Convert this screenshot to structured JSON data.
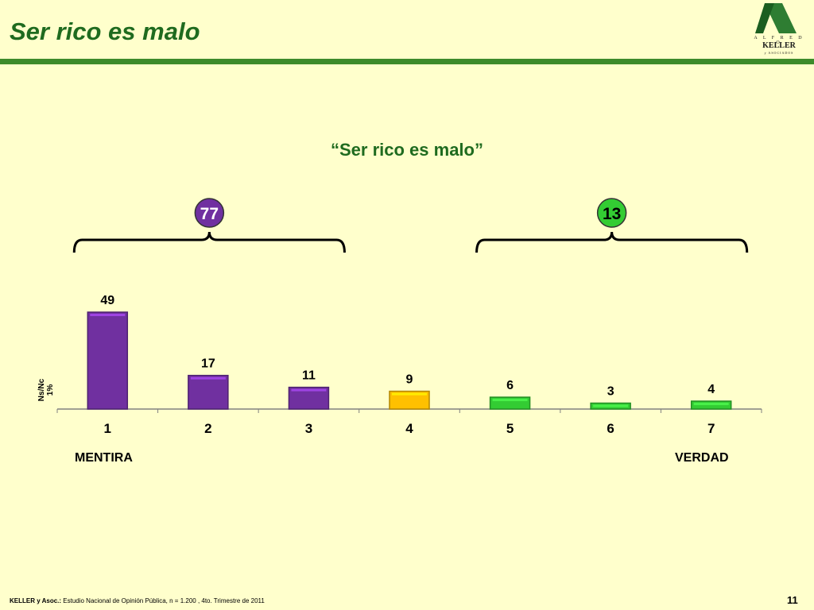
{
  "slide": {
    "title": "Ser rico es malo",
    "logo": {
      "top": "A L F R E D O",
      "mid": "KELLER",
      "bot": "y ASOCIADOS"
    },
    "footer_bold": "KELLER y Asoc.:",
    "footer_text": " Estudio Nacional de Opinión Pública, n = 1.200 , 4to. Trimestre de 2011",
    "page_number": "11"
  },
  "chart_data": {
    "type": "bar",
    "title": "“Ser rico es malo”",
    "categories": [
      "1",
      "2",
      "3",
      "4",
      "5",
      "6",
      "7"
    ],
    "values": [
      49,
      17,
      11,
      9,
      6,
      3,
      4
    ],
    "bar_colors": [
      "#7030a0",
      "#7030a0",
      "#7030a0",
      "#ffc000",
      "#33cc33",
      "#33cc33",
      "#33cc33"
    ],
    "ylabel": "Ns/Nc  1%",
    "left_label": "MENTIRA",
    "right_label": "VERDAD",
    "groups": [
      {
        "value": "77",
        "color": "#7030a0",
        "text_color": "#ffffff",
        "from": 1,
        "to": 3
      },
      {
        "value": "13",
        "color": "#33cc33",
        "text_color": "#000000",
        "from": 5,
        "to": 7
      }
    ],
    "grid": false
  }
}
